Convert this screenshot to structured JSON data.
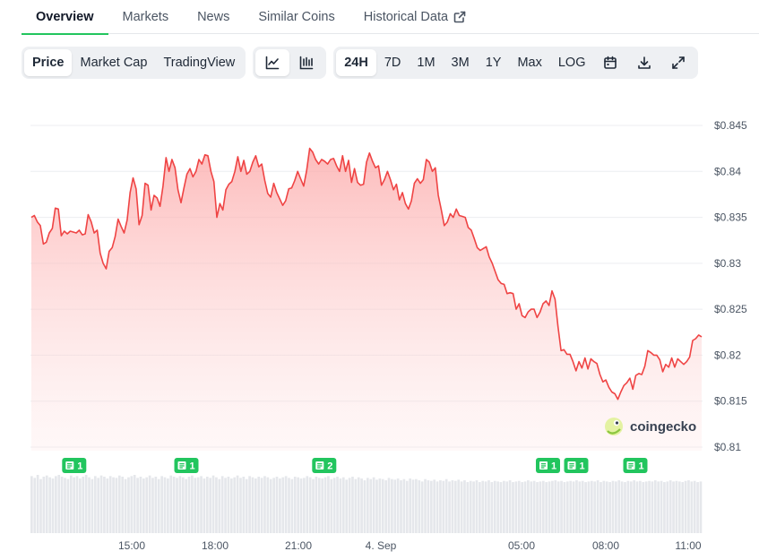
{
  "tabs": [
    {
      "label": "Overview",
      "active": true
    },
    {
      "label": "Markets",
      "active": false
    },
    {
      "label": "News",
      "active": false
    },
    {
      "label": "Similar Coins",
      "active": false
    },
    {
      "label": "Historical Data",
      "active": false,
      "external": true
    }
  ],
  "toolbar": {
    "metrics": [
      {
        "label": "Price",
        "active": true
      },
      {
        "label": "Market Cap",
        "active": false
      },
      {
        "label": "TradingView",
        "active": false
      }
    ],
    "chart_modes": [
      {
        "icon": "line-chart-icon",
        "active": true
      },
      {
        "icon": "candlestick-chart-icon",
        "active": false
      }
    ],
    "ranges": [
      {
        "label": "24H",
        "active": true
      },
      {
        "label": "7D",
        "active": false
      },
      {
        "label": "1M",
        "active": false
      },
      {
        "label": "3M",
        "active": false
      },
      {
        "label": "1Y",
        "active": false
      },
      {
        "label": "Max",
        "active": false
      },
      {
        "label": "LOG",
        "active": false
      }
    ],
    "tools": [
      {
        "icon": "calendar-icon"
      },
      {
        "icon": "download-icon"
      },
      {
        "icon": "fullscreen-icon"
      }
    ]
  },
  "watermark": "coingecko",
  "colors": {
    "line": "#ef4444",
    "news": "#22c55e",
    "accent": "#22c55e",
    "volume": "#e5e7eb"
  },
  "chart_data": {
    "type": "area",
    "y_ticks": [
      "$0.845",
      "$0.84",
      "$0.835",
      "$0.83",
      "$0.825",
      "$0.82",
      "$0.815",
      "$0.81"
    ],
    "x_ticks": [
      "15:00",
      "18:00",
      "21:00",
      "4. Sep",
      "05:00",
      "08:00",
      "11:00"
    ],
    "ylim": [
      0.81,
      0.845
    ],
    "grid": true,
    "series": [
      {
        "values": [
          0.835,
          0.8352,
          0.8345,
          0.8341,
          0.8321,
          0.8323,
          0.8333,
          0.8338,
          0.836,
          0.8359,
          0.833,
          0.8335,
          0.8332,
          0.8335,
          0.8334,
          0.8333,
          0.8336,
          0.8331,
          0.8332,
          0.8353,
          0.8345,
          0.8333,
          0.8336,
          0.8311,
          0.83,
          0.8294,
          0.8313,
          0.8317,
          0.8329,
          0.8348,
          0.834,
          0.8333,
          0.8347,
          0.8377,
          0.8393,
          0.8381,
          0.8342,
          0.8352,
          0.8387,
          0.8385,
          0.8358,
          0.8374,
          0.8371,
          0.8362,
          0.8384,
          0.8415,
          0.84,
          0.8413,
          0.8404,
          0.838,
          0.8366,
          0.8382,
          0.8397,
          0.8403,
          0.8394,
          0.84,
          0.8413,
          0.8408,
          0.8418,
          0.8417,
          0.84,
          0.8389,
          0.835,
          0.8365,
          0.8358,
          0.838,
          0.8386,
          0.8389,
          0.84,
          0.8416,
          0.84,
          0.8412,
          0.8397,
          0.84,
          0.841,
          0.8417,
          0.8405,
          0.8408,
          0.839,
          0.8376,
          0.8372,
          0.8387,
          0.8377,
          0.837,
          0.8363,
          0.8368,
          0.8381,
          0.8382,
          0.839,
          0.84,
          0.8392,
          0.8384,
          0.8401,
          0.8425,
          0.8421,
          0.8413,
          0.8408,
          0.8413,
          0.8411,
          0.8408,
          0.8413,
          0.8414,
          0.8406,
          0.84,
          0.8417,
          0.84,
          0.8412,
          0.8388,
          0.8403,
          0.8388,
          0.8385,
          0.8386,
          0.841,
          0.842,
          0.8411,
          0.8404,
          0.8406,
          0.8385,
          0.8391,
          0.84,
          0.8391,
          0.838,
          0.8386,
          0.8369,
          0.8377,
          0.8365,
          0.8359,
          0.8368,
          0.8387,
          0.8392,
          0.8387,
          0.8391,
          0.8413,
          0.841,
          0.84,
          0.8404,
          0.8374,
          0.8358,
          0.8341,
          0.8345,
          0.8354,
          0.835,
          0.8359,
          0.8352,
          0.8351,
          0.835,
          0.8339,
          0.8336,
          0.8327,
          0.8317,
          0.8314,
          0.8316,
          0.8318,
          0.8307,
          0.83,
          0.8291,
          0.8282,
          0.8278,
          0.8277,
          0.8267,
          0.8268,
          0.8267,
          0.825,
          0.8256,
          0.8243,
          0.8241,
          0.8247,
          0.825,
          0.825,
          0.8241,
          0.8247,
          0.8256,
          0.8259,
          0.8254,
          0.827,
          0.8261,
          0.8231,
          0.8205,
          0.8206,
          0.8201,
          0.8201,
          0.8193,
          0.8183,
          0.8193,
          0.8186,
          0.8197,
          0.8185,
          0.8196,
          0.8193,
          0.8191,
          0.8179,
          0.8171,
          0.8173,
          0.8165,
          0.816,
          0.8158,
          0.8152,
          0.816,
          0.8167,
          0.817,
          0.8175,
          0.8163,
          0.8178,
          0.818,
          0.8179,
          0.8188,
          0.8205,
          0.8203,
          0.82,
          0.82,
          0.8195,
          0.8182,
          0.819,
          0.8187,
          0.8197,
          0.8187,
          0.8196,
          0.8193,
          0.819,
          0.8193,
          0.8198,
          0.8216,
          0.8218,
          0.8222,
          0.822
        ]
      }
    ],
    "volume": [
      0.95,
      0.92,
      0.97,
      0.9,
      0.94,
      0.96,
      0.93,
      0.91,
      0.95,
      0.97,
      0.94,
      0.92,
      0.9,
      0.96,
      0.93,
      0.95,
      0.91,
      0.94,
      0.97,
      0.93,
      0.9,
      0.95,
      0.92,
      0.96,
      0.94,
      0.91,
      0.95,
      0.93,
      0.92,
      0.96,
      0.94,
      0.9,
      0.93,
      0.95,
      0.97,
      0.92,
      0.94,
      0.91,
      0.93,
      0.96,
      0.92,
      0.94,
      0.9,
      0.95,
      0.93,
      0.91,
      0.96,
      0.94,
      0.92,
      0.95,
      0.93,
      0.9,
      0.94,
      0.96,
      0.92,
      0.93,
      0.95,
      0.91,
      0.94,
      0.92,
      0.96,
      0.93,
      0.9,
      0.95,
      0.92,
      0.94,
      0.91,
      0.93,
      0.96,
      0.92,
      0.94,
      0.9,
      0.95,
      0.93,
      0.91,
      0.94,
      0.92,
      0.95,
      0.93,
      0.9,
      0.92,
      0.94,
      0.91,
      0.93,
      0.95,
      0.92,
      0.9,
      0.94,
      0.93,
      0.91,
      0.92,
      0.95,
      0.93,
      0.9,
      0.94,
      0.92,
      0.91,
      0.93,
      0.95,
      0.9,
      0.92,
      0.94,
      0.91,
      0.93,
      0.89,
      0.92,
      0.94,
      0.9,
      0.93,
      0.91,
      0.88,
      0.92,
      0.9,
      0.93,
      0.89,
      0.91,
      0.9,
      0.88,
      0.92,
      0.9,
      0.89,
      0.91,
      0.88,
      0.9,
      0.87,
      0.91,
      0.89,
      0.9,
      0.88,
      0.86,
      0.9,
      0.88,
      0.87,
      0.89,
      0.86,
      0.88,
      0.87,
      0.9,
      0.86,
      0.88,
      0.87,
      0.89,
      0.86,
      0.88,
      0.85,
      0.87,
      0.86,
      0.88,
      0.85,
      0.87,
      0.86,
      0.88,
      0.85,
      0.87,
      0.86,
      0.85,
      0.87,
      0.86,
      0.88,
      0.85,
      0.86,
      0.87,
      0.85,
      0.86,
      0.88,
      0.86,
      0.87,
      0.85,
      0.86,
      0.87,
      0.85,
      0.86,
      0.87,
      0.88,
      0.86,
      0.87,
      0.85,
      0.86,
      0.87,
      0.86,
      0.88,
      0.86,
      0.87,
      0.85,
      0.86,
      0.87,
      0.86,
      0.88,
      0.85,
      0.87,
      0.86,
      0.85,
      0.87,
      0.86,
      0.88,
      0.86,
      0.85,
      0.87,
      0.86,
      0.88,
      0.86,
      0.87,
      0.85,
      0.86,
      0.87,
      0.86,
      0.88,
      0.86,
      0.87,
      0.85,
      0.86,
      0.88,
      0.86,
      0.87,
      0.86,
      0.85,
      0.87,
      0.88,
      0.86,
      0.87,
      0.85,
      0.86
    ]
  },
  "news_markers": [
    {
      "label": "1",
      "position": 0.065
    },
    {
      "label": "1",
      "position": 0.232
    },
    {
      "label": "2",
      "position": 0.437
    },
    {
      "label": "1",
      "position": 0.77
    },
    {
      "label": "1",
      "position": 0.812
    },
    {
      "label": "1",
      "position": 0.9
    }
  ]
}
